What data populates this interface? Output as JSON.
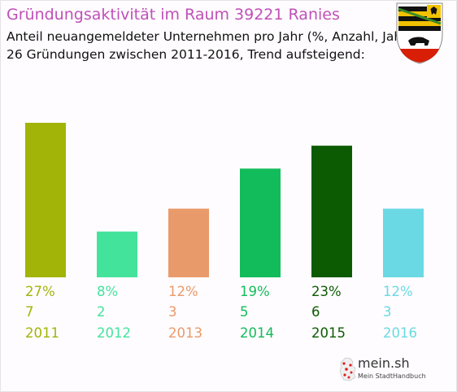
{
  "header": {
    "title": "Gründungsaktivität im Raum 39221 Ranies",
    "subtitle_line1": "Anteil neuangemeldeter Unternehmen pro Jahr (%, Anzahl, Jahr)",
    "subtitle_line2": "26 Gründungen zwischen 2011-2016, Trend aufsteigend:"
  },
  "crest": {
    "icon": "coat-of-arms-icon"
  },
  "brand": {
    "name": "mein.sh",
    "tagline": "Mein StadtHandbuch",
    "icon": "germany-map-icon"
  },
  "chart_data": {
    "type": "bar",
    "categories": [
      "2011",
      "2012",
      "2013",
      "2014",
      "2015",
      "2016"
    ],
    "values": [
      27,
      8,
      12,
      19,
      23,
      12
    ],
    "counts": [
      7,
      2,
      3,
      5,
      6,
      3
    ],
    "value_labels": [
      "27%",
      "8%",
      "12%",
      "19%",
      "23%",
      "12%"
    ],
    "count_labels": [
      "7",
      "2",
      "3",
      "5",
      "6",
      "3"
    ],
    "colors": [
      "#a2b407",
      "#44e39c",
      "#e99a6a",
      "#13bc5a",
      "#0c5b02",
      "#6ad9e3"
    ],
    "ylim": [
      0,
      27
    ],
    "grid": false,
    "title": "",
    "xlabel": "",
    "ylabel": ""
  }
}
